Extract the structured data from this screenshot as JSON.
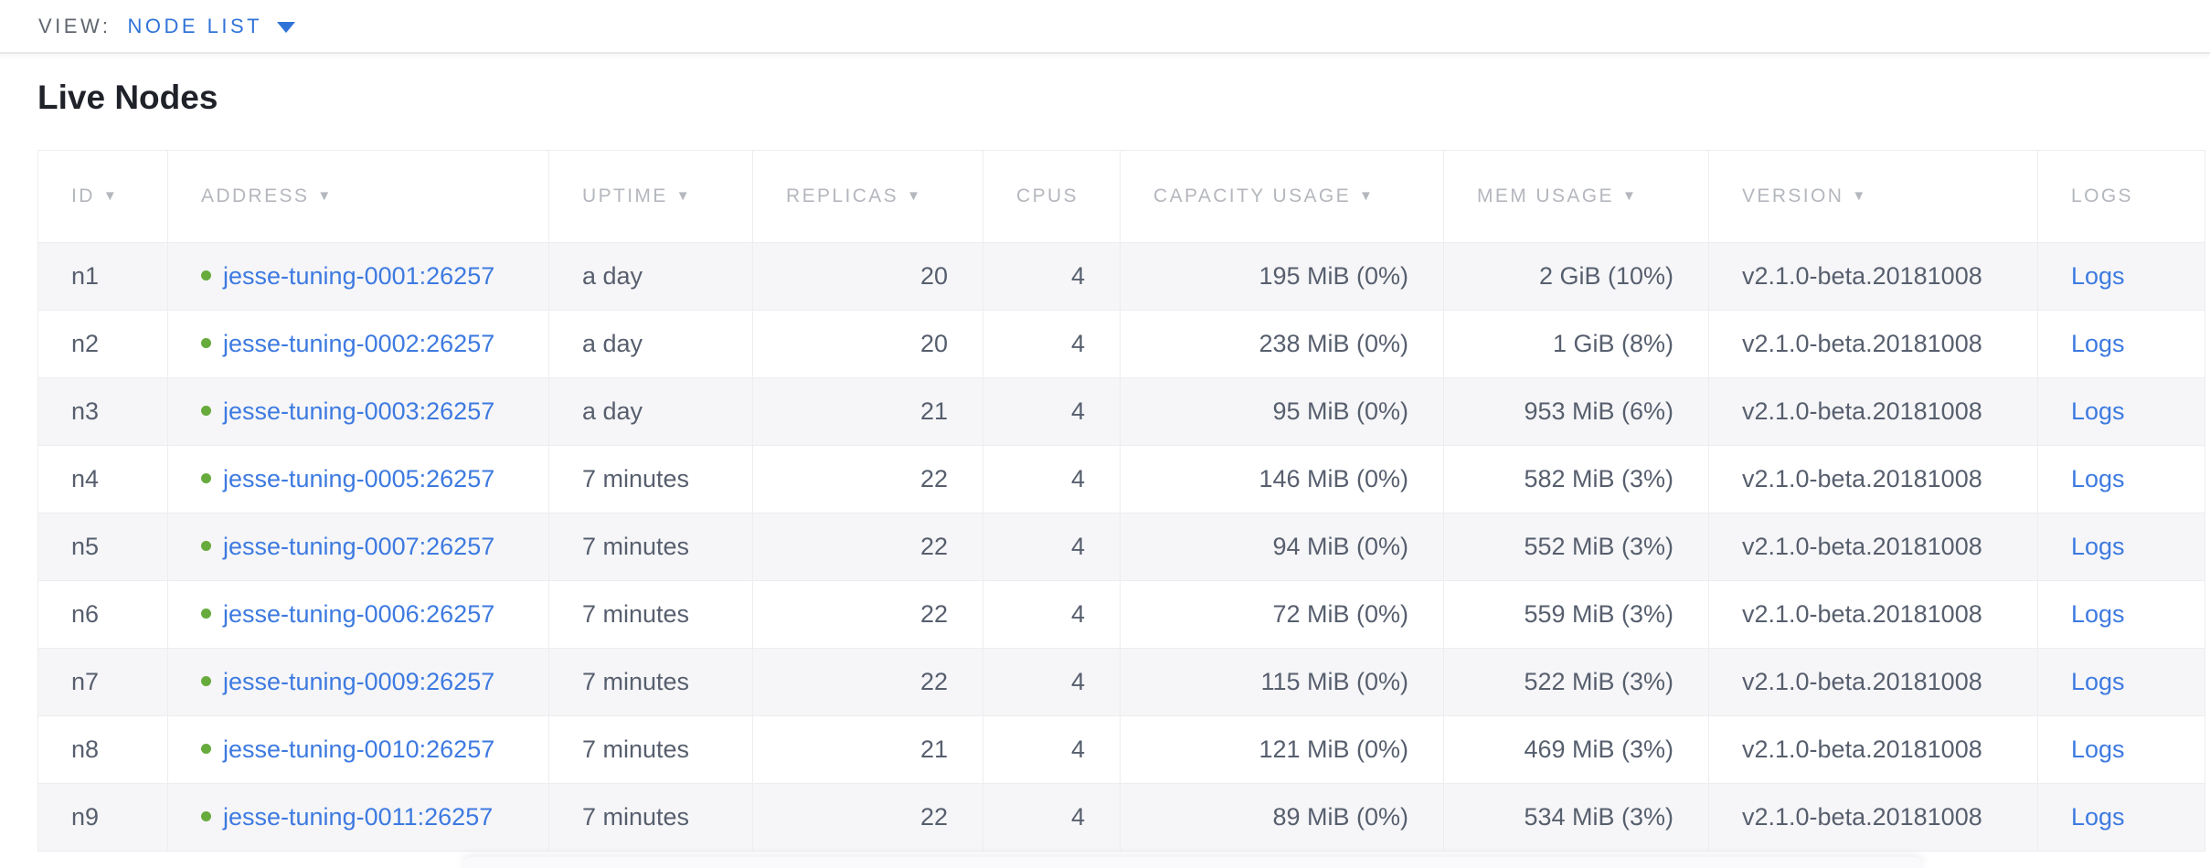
{
  "view_bar": {
    "label": "VIEW:",
    "selected": "NODE LIST"
  },
  "page": {
    "title": "Live Nodes"
  },
  "table": {
    "sort_indicator": "▼",
    "columns": [
      {
        "key": "id",
        "label": "ID",
        "sortable": true,
        "align": "left"
      },
      {
        "key": "address",
        "label": "ADDRESS",
        "sortable": true,
        "align": "left"
      },
      {
        "key": "uptime",
        "label": "UPTIME",
        "sortable": true,
        "align": "left"
      },
      {
        "key": "replicas",
        "label": "REPLICAS",
        "sortable": true,
        "align": "right"
      },
      {
        "key": "cpus",
        "label": "CPUS",
        "sortable": false,
        "align": "right"
      },
      {
        "key": "capacity",
        "label": "CAPACITY USAGE",
        "sortable": true,
        "align": "right"
      },
      {
        "key": "mem",
        "label": "MEM USAGE",
        "sortable": true,
        "align": "right"
      },
      {
        "key": "version",
        "label": "VERSION",
        "sortable": true,
        "align": "left"
      },
      {
        "key": "logs",
        "label": "LOGS",
        "sortable": false,
        "align": "left"
      }
    ],
    "rows": [
      {
        "id": "n1",
        "address": "jesse-tuning-0001:26257",
        "uptime": "a day",
        "replicas": "20",
        "cpus": "4",
        "capacity": "195 MiB (0%)",
        "mem": "2 GiB (10%)",
        "version": "v2.1.0-beta.20181008",
        "logs": "Logs",
        "status": "live"
      },
      {
        "id": "n2",
        "address": "jesse-tuning-0002:26257",
        "uptime": "a day",
        "replicas": "20",
        "cpus": "4",
        "capacity": "238 MiB (0%)",
        "mem": "1 GiB (8%)",
        "version": "v2.1.0-beta.20181008",
        "logs": "Logs",
        "status": "live"
      },
      {
        "id": "n3",
        "address": "jesse-tuning-0003:26257",
        "uptime": "a day",
        "replicas": "21",
        "cpus": "4",
        "capacity": "95 MiB (0%)",
        "mem": "953 MiB (6%)",
        "version": "v2.1.0-beta.20181008",
        "logs": "Logs",
        "status": "live"
      },
      {
        "id": "n4",
        "address": "jesse-tuning-0005:26257",
        "uptime": "7 minutes",
        "replicas": "22",
        "cpus": "4",
        "capacity": "146 MiB (0%)",
        "mem": "582 MiB (3%)",
        "version": "v2.1.0-beta.20181008",
        "logs": "Logs",
        "status": "live"
      },
      {
        "id": "n5",
        "address": "jesse-tuning-0007:26257",
        "uptime": "7 minutes",
        "replicas": "22",
        "cpus": "4",
        "capacity": "94 MiB (0%)",
        "mem": "552 MiB (3%)",
        "version": "v2.1.0-beta.20181008",
        "logs": "Logs",
        "status": "live"
      },
      {
        "id": "n6",
        "address": "jesse-tuning-0006:26257",
        "uptime": "7 minutes",
        "replicas": "22",
        "cpus": "4",
        "capacity": "72 MiB (0%)",
        "mem": "559 MiB (3%)",
        "version": "v2.1.0-beta.20181008",
        "logs": "Logs",
        "status": "live"
      },
      {
        "id": "n7",
        "address": "jesse-tuning-0009:26257",
        "uptime": "7 minutes",
        "replicas": "22",
        "cpus": "4",
        "capacity": "115 MiB (0%)",
        "mem": "522 MiB (3%)",
        "version": "v2.1.0-beta.20181008",
        "logs": "Logs",
        "status": "live"
      },
      {
        "id": "n8",
        "address": "jesse-tuning-0010:26257",
        "uptime": "7 minutes",
        "replicas": "21",
        "cpus": "4",
        "capacity": "121 MiB (0%)",
        "mem": "469 MiB (3%)",
        "version": "v2.1.0-beta.20181008",
        "logs": "Logs",
        "status": "live"
      },
      {
        "id": "n9",
        "address": "jesse-tuning-0011:26257",
        "uptime": "7 minutes",
        "replicas": "22",
        "cpus": "4",
        "capacity": "89 MiB (0%)",
        "mem": "534 MiB (3%)",
        "version": "v2.1.0-beta.20181008",
        "logs": "Logs",
        "status": "live"
      }
    ]
  },
  "colors": {
    "accent_blue": "#3073d8",
    "link_blue": "#3d7ae0",
    "status_green": "#67ab3c",
    "header_text": "#b4b7bd",
    "cell_text": "#575f6e",
    "alt_row_bg": "#f6f6f8",
    "border": "#ededf0"
  }
}
